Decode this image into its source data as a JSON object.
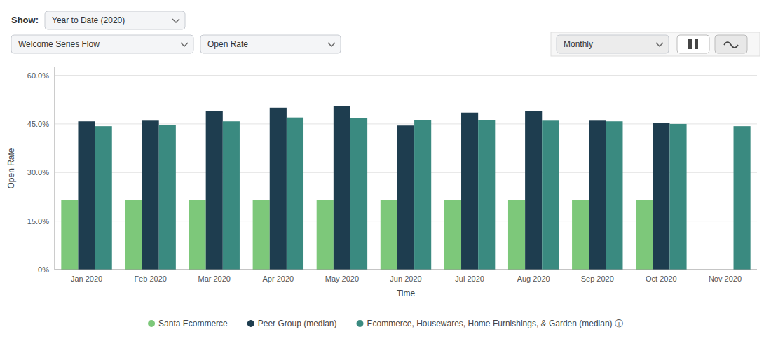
{
  "chart_data": {
    "type": "bar",
    "xlabel": "Time",
    "ylabel": "Open Rate",
    "annotations": [
      "Show:",
      "Year to Date (2020)",
      "Welcome Series Flow",
      "Open Rate",
      "Monthly"
    ],
    "categories": [
      "Jan 2020",
      "Feb 2020",
      "Mar 2020",
      "Apr 2020",
      "May 2020",
      "Jun 2020",
      "Jul 2020",
      "Aug 2020",
      "Sep 2020",
      "Oct 2020",
      "Nov 2020"
    ],
    "series": [
      {
        "name": "Santa Ecommerce",
        "color": "#7dc87a",
        "values": [
          0.215,
          0.215,
          0.215,
          0.215,
          0.215,
          0.215,
          0.215,
          0.215,
          0.215,
          0.215,
          null
        ]
      },
      {
        "name": "Peer Group (median)",
        "color": "#1e3d4f",
        "values": [
          0.458,
          0.46,
          0.49,
          0.5,
          0.505,
          0.445,
          0.485,
          0.49,
          0.46,
          0.453,
          null
        ]
      },
      {
        "name": "Ecommerce, Housewares, Home Furnishings, & Garden (median) ⓘ",
        "color": "#3a8a80",
        "values": [
          0.443,
          0.447,
          0.458,
          0.47,
          0.468,
          0.462,
          0.462,
          0.46,
          0.458,
          0.45,
          0.443
        ]
      }
    ],
    "ylim": [
      0,
      0.625
    ],
    "yticks": [
      {
        "value": 0.0,
        "label": "0%"
      },
      {
        "value": 0.15,
        "label": "15.0%"
      },
      {
        "value": 0.3,
        "label": "30.0%"
      },
      {
        "value": 0.45,
        "label": "45.0%"
      },
      {
        "value": 0.6,
        "label": "60.0%"
      }
    ],
    "grid": true,
    "legend": "bottom"
  }
}
